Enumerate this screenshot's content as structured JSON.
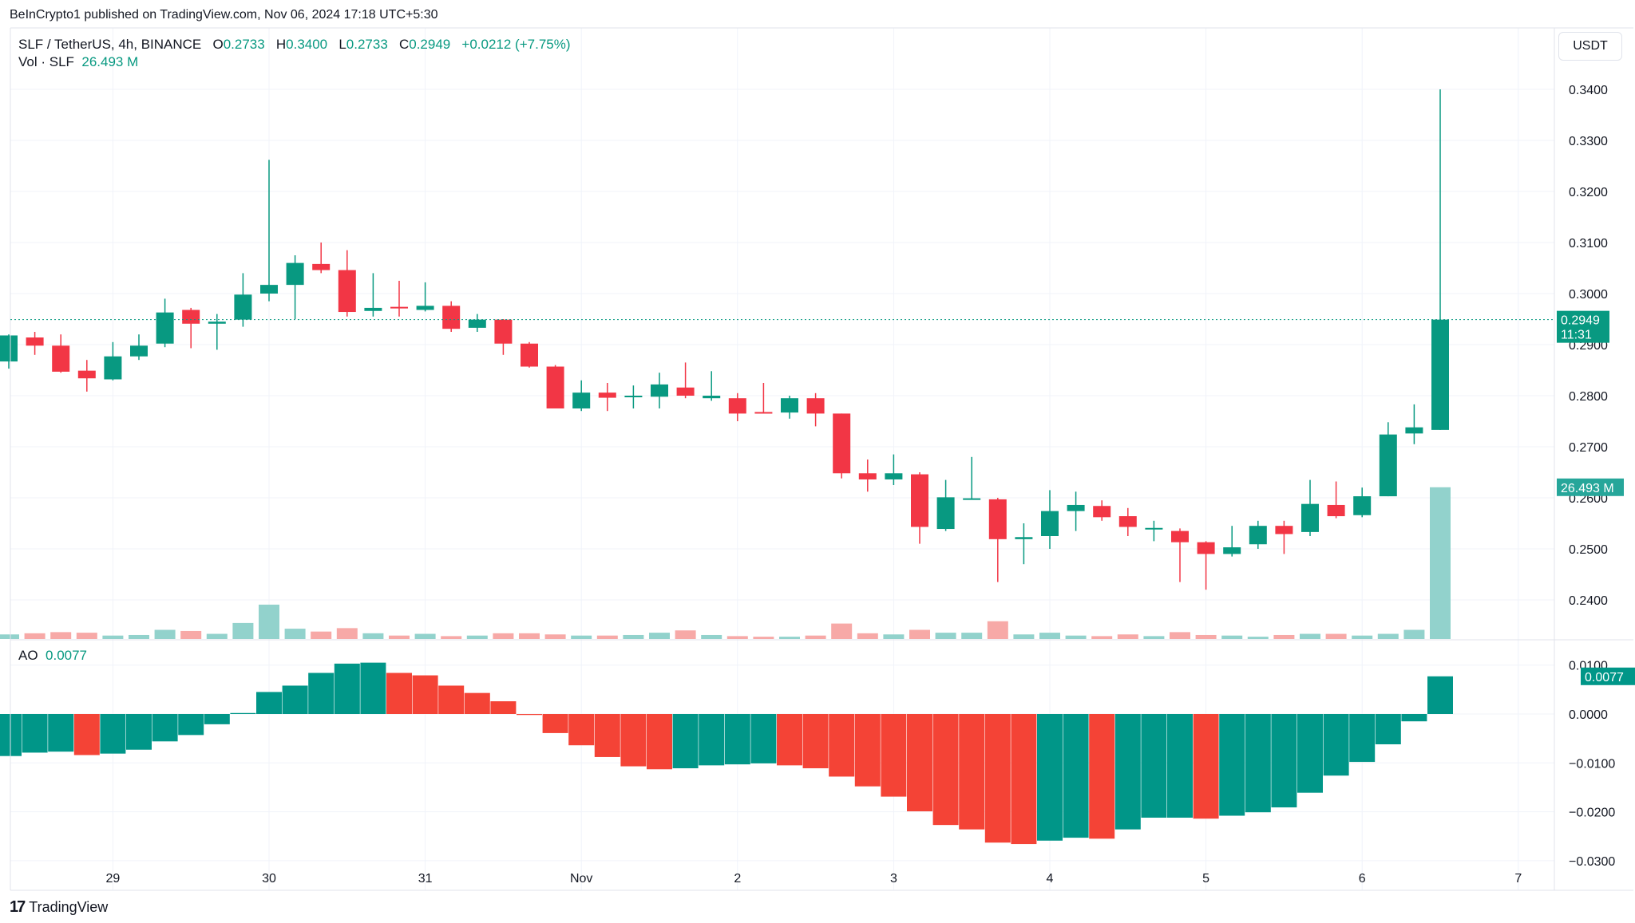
{
  "publisher_line": "BeInCrypto1 published on TradingView.com, Nov 06, 2024 17:18 UTC+5:30",
  "legend": {
    "symbol": "SLF / TetherUS, 4h, BINANCE",
    "o_label": "O",
    "o": "0.2733",
    "h_label": "H",
    "h": "0.3400",
    "l_label": "L",
    "l": "0.2733",
    "c_label": "C",
    "c": "0.2949",
    "change": "+0.0212 (+7.75%)",
    "vol_label": "Vol · SLF",
    "vol": "26.493 M"
  },
  "currency_button": "USDT",
  "ao_legend": {
    "label": "AO",
    "value": "0.0077"
  },
  "badges": {
    "price": "0.2949",
    "countdown": "11:31",
    "volume": "26.493 M",
    "ao": "0.0077"
  },
  "footer_brand": "TradingView",
  "colors": {
    "up": "#089981",
    "down": "#F23645",
    "vol_up": "#92D2CC",
    "vol_down": "#F7A9A7",
    "ao_up": "#009688",
    "ao_down": "#F44336"
  },
  "chart_data": {
    "type": "candlestick",
    "title": "SLF / TetherUS, 4h, BINANCE",
    "price_ticks": [
      "0.3400",
      "0.3300",
      "0.3200",
      "0.3100",
      "0.3000",
      "0.2900",
      "0.2800",
      "0.2700",
      "0.2600",
      "0.2500",
      "0.2400"
    ],
    "ylim": [
      0.24,
      0.34
    ],
    "x_ticks": [
      {
        "label": "29",
        "index": 4
      },
      {
        "label": "30",
        "index": 10
      },
      {
        "label": "31",
        "index": 16
      },
      {
        "label": "Nov",
        "index": 22
      },
      {
        "label": "2",
        "index": 28
      },
      {
        "label": "3",
        "index": 34
      },
      {
        "label": "4",
        "index": 40
      },
      {
        "label": "5",
        "index": 46
      },
      {
        "label": "6",
        "index": 52
      },
      {
        "label": "7",
        "index": 58
      }
    ],
    "last_price": 0.2949,
    "ohlc": [
      [
        0.2867,
        0.292,
        0.2853,
        0.2918
      ],
      [
        0.2914,
        0.2925,
        0.288,
        0.2898
      ],
      [
        0.2898,
        0.292,
        0.2845,
        0.2847
      ],
      [
        0.2849,
        0.287,
        0.2808,
        0.2834
      ],
      [
        0.2832,
        0.2905,
        0.283,
        0.2877
      ],
      [
        0.2877,
        0.292,
        0.287,
        0.2898
      ],
      [
        0.2902,
        0.299,
        0.2895,
        0.2963
      ],
      [
        0.2968,
        0.2972,
        0.2893,
        0.2941
      ],
      [
        0.2941,
        0.296,
        0.289,
        0.2945
      ],
      [
        0.2949,
        0.304,
        0.2935,
        0.2998
      ],
      [
        0.3,
        0.3262,
        0.2985,
        0.3017
      ],
      [
        0.3017,
        0.3075,
        0.295,
        0.306
      ],
      [
        0.3058,
        0.31,
        0.304,
        0.3046
      ],
      [
        0.3046,
        0.3085,
        0.2955,
        0.2964
      ],
      [
        0.2966,
        0.304,
        0.2955,
        0.2972
      ],
      [
        0.2974,
        0.3025,
        0.2955,
        0.2972
      ],
      [
        0.2968,
        0.3022,
        0.2965,
        0.2976
      ],
      [
        0.2976,
        0.2985,
        0.2925,
        0.2931
      ],
      [
        0.2933,
        0.296,
        0.2925,
        0.2949
      ],
      [
        0.2949,
        0.295,
        0.288,
        0.2902
      ],
      [
        0.2902,
        0.2905,
        0.2855,
        0.2857
      ],
      [
        0.2857,
        0.286,
        0.2775,
        0.2775
      ],
      [
        0.2775,
        0.283,
        0.277,
        0.2806
      ],
      [
        0.2806,
        0.2825,
        0.277,
        0.2796
      ],
      [
        0.2798,
        0.282,
        0.2775,
        0.28
      ],
      [
        0.2798,
        0.2845,
        0.2775,
        0.2822
      ],
      [
        0.2816,
        0.2865,
        0.2795,
        0.28
      ],
      [
        0.2795,
        0.2848,
        0.279,
        0.28
      ],
      [
        0.2795,
        0.2805,
        0.275,
        0.2765
      ],
      [
        0.2768,
        0.2825,
        0.2765,
        0.2766
      ],
      [
        0.2767,
        0.28,
        0.2755,
        0.2795
      ],
      [
        0.2795,
        0.2805,
        0.274,
        0.2765
      ],
      [
        0.2765,
        0.2765,
        0.2638,
        0.2648
      ],
      [
        0.2648,
        0.2675,
        0.2612,
        0.2636
      ],
      [
        0.2636,
        0.2685,
        0.2625,
        0.2648
      ],
      [
        0.2646,
        0.265,
        0.251,
        0.2543
      ],
      [
        0.2539,
        0.2635,
        0.2535,
        0.2601
      ],
      [
        0.2597,
        0.268,
        0.2597,
        0.2599
      ],
      [
        0.2597,
        0.26,
        0.2435,
        0.2519
      ],
      [
        0.2519,
        0.255,
        0.247,
        0.2523
      ],
      [
        0.2525,
        0.2615,
        0.25,
        0.2574
      ],
      [
        0.2574,
        0.2612,
        0.2535,
        0.2586
      ],
      [
        0.2584,
        0.2595,
        0.2555,
        0.2562
      ],
      [
        0.2564,
        0.258,
        0.2525,
        0.2543
      ],
      [
        0.2539,
        0.2555,
        0.2515,
        0.2541
      ],
      [
        0.2535,
        0.254,
        0.2435,
        0.2513
      ],
      [
        0.2513,
        0.2515,
        0.242,
        0.249
      ],
      [
        0.249,
        0.2545,
        0.2485,
        0.2503
      ],
      [
        0.2509,
        0.2555,
        0.25,
        0.2545
      ],
      [
        0.2545,
        0.2555,
        0.249,
        0.2529
      ],
      [
        0.2533,
        0.2635,
        0.2525,
        0.2588
      ],
      [
        0.2586,
        0.2632,
        0.256,
        0.2564
      ],
      [
        0.2566,
        0.262,
        0.2562,
        0.2603
      ],
      [
        0.2603,
        0.2748,
        0.2603,
        0.2724
      ],
      [
        0.2726,
        0.2783,
        0.2705,
        0.2738
      ],
      [
        0.2733,
        0.34,
        0.2733,
        0.2949
      ]
    ],
    "volume_millions": [
      0.8,
      1.0,
      1.2,
      1.1,
      0.6,
      0.7,
      1.6,
      1.4,
      0.9,
      2.8,
      6.0,
      1.8,
      1.3,
      1.9,
      1.0,
      0.6,
      0.9,
      0.5,
      0.6,
      1.0,
      1.0,
      0.8,
      0.6,
      0.6,
      0.7,
      1.1,
      1.5,
      0.7,
      0.5,
      0.4,
      0.4,
      0.6,
      2.7,
      1.0,
      0.8,
      1.6,
      1.1,
      1.1,
      3.1,
      0.8,
      1.1,
      0.6,
      0.5,
      0.8,
      0.5,
      1.2,
      0.7,
      0.6,
      0.4,
      0.7,
      0.9,
      0.9,
      0.6,
      0.9,
      1.6,
      26.493
    ],
    "ao": {
      "ticks": [
        "0.0100",
        "0.0000",
        "−0.0100",
        "−0.0200",
        "−0.0300"
      ],
      "ylim": [
        -0.03,
        0.01
      ],
      "values": [
        -0.0086,
        -0.0079,
        -0.0077,
        -0.0084,
        -0.0081,
        -0.0073,
        -0.0056,
        -0.0043,
        -0.0021,
        0.0002,
        0.0045,
        0.0058,
        0.0084,
        0.0103,
        0.0105,
        0.0084,
        0.0079,
        0.0058,
        0.0043,
        0.0026,
        -0.0002,
        -0.0039,
        -0.0064,
        -0.0088,
        -0.0107,
        -0.0113,
        -0.0111,
        -0.0105,
        -0.0103,
        -0.0101,
        -0.0105,
        -0.0111,
        -0.0128,
        -0.0148,
        -0.0169,
        -0.0199,
        -0.0227,
        -0.0236,
        -0.0263,
        -0.0266,
        -0.0259,
        -0.0253,
        -0.0255,
        -0.0236,
        -0.0212,
        -0.0212,
        -0.0214,
        -0.0208,
        -0.0201,
        -0.0191,
        -0.0161,
        -0.0126,
        -0.0098,
        -0.0062,
        -0.0015,
        0.0077
      ]
    }
  }
}
